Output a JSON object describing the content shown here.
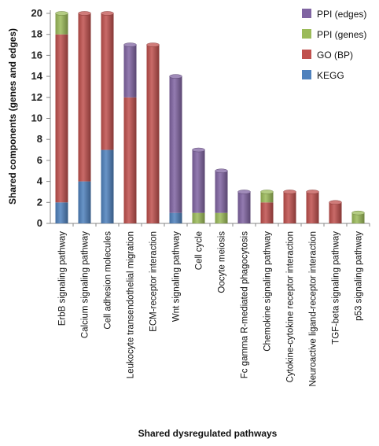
{
  "chart_data": {
    "type": "bar",
    "stacked": true,
    "style": "3d-cylinder",
    "title": "",
    "xlabel": "Shared dysregulated pathways",
    "ylabel": "Shared components (genes and edges)",
    "ylim": [
      0,
      20
    ],
    "yticks": [
      0,
      2,
      4,
      6,
      8,
      10,
      12,
      14,
      16,
      18,
      20
    ],
    "grid": false,
    "legend_position": "top-right",
    "categories": [
      "ErbB signaling pathway",
      "Calcium signaling pathway",
      "Cell adhesion molecules",
      "Leukocyte transendothelial migration",
      "ECM-receptor interaction",
      "Wnt signaling pathway",
      "Cell cycle",
      "Oocyte meiosis",
      "Fc gamma R-mediated phagocytosis",
      "Chemokine signaling pathway",
      "Cytokine-cytokine receptor interaction",
      "Neuroactive ligand-receptor interaction",
      "TGF-beta signaling pathway",
      "p53 signaling pathway"
    ],
    "series": [
      {
        "name": "KEGG",
        "color": "#4f81bd",
        "values": [
          2,
          4,
          7,
          0,
          0,
          1,
          0,
          0,
          0,
          0,
          0,
          0,
          0,
          0
        ]
      },
      {
        "name": "GO (BP)",
        "color": "#c0504d",
        "values": [
          16,
          16,
          13,
          12,
          17,
          0,
          0,
          0,
          0,
          2,
          3,
          3,
          2,
          0
        ]
      },
      {
        "name": "PPI (genes)",
        "color": "#9bbb59",
        "values": [
          2,
          0,
          0,
          0,
          0,
          0,
          1,
          1,
          0,
          1,
          0,
          0,
          0,
          1
        ]
      },
      {
        "name": "PPI (edges)",
        "color": "#8064a2",
        "values": [
          0,
          0,
          0,
          5,
          0,
          13,
          6,
          4,
          3,
          0,
          0,
          0,
          0,
          0
        ]
      }
    ],
    "legend_order": [
      "PPI (edges)",
      "PPI (genes)",
      "GO (BP)",
      "KEGG"
    ]
  }
}
